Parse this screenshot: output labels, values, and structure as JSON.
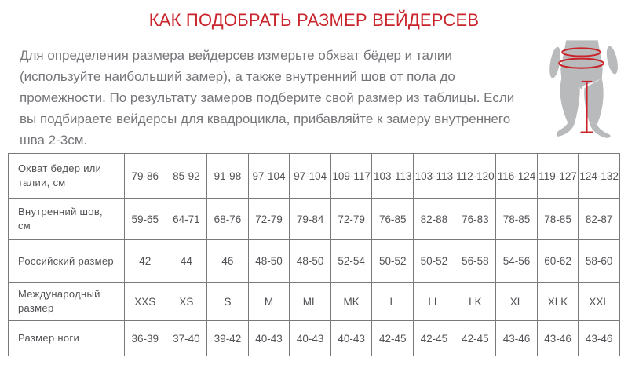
{
  "page": {
    "title": "КАК ПОДОБРАТЬ РАЗМЕР ВЕЙДЕРСЕВ",
    "intro": "Для определения размера вейдерсев измерьте обхват бёдер и талии (используйте наибольший замер), а также внутренний шов от пола до промежности. По результату замеров подберите свой размер из таблицы. Если вы подбираете вейдерсы для квадроцикла, прибавляйте к замеру внутреннего шва 2-3см."
  },
  "figure": {
    "icon": "legs-measurement-icon",
    "description_parts": [
      "waist-girth-ellipse",
      "hip-girth-ellipse",
      "inseam-line"
    ]
  },
  "colors": {
    "title_red": "#c9242b",
    "accent_red": "#c9242b",
    "body_text": "#75767a",
    "table_text": "#525256",
    "table_border": "#7a7a7c",
    "figure_gray": "#b9babc",
    "background": "#ffffff"
  },
  "table": {
    "rows": [
      {
        "label": "Охват бедер или талии, см",
        "values": [
          "79-86",
          "85-92",
          "91-98",
          "97-104",
          "97-104",
          "109-117",
          "103-113",
          "103-113",
          "112-120",
          "116-124",
          "119-127",
          "124-132"
        ]
      },
      {
        "label": "Внутренний шов, см",
        "values": [
          "59-65",
          "64-71",
          "68-76",
          "72-79",
          "79-84",
          "72-79",
          "76-85",
          "82-88",
          "76-83",
          "78-85",
          "78-85",
          "82-87"
        ]
      },
      {
        "label": "Российский размер",
        "values": [
          "42",
          "44",
          "46",
          "48-50",
          "48-50",
          "52-54",
          "50-52",
          "50-52",
          "56-58",
          "54-56",
          "60-62",
          "58-60"
        ]
      },
      {
        "label": "Международный размер",
        "values": [
          "XXS",
          "XS",
          "S",
          "M",
          "ML",
          "MK",
          "L",
          "LL",
          "LK",
          "XL",
          "XLK",
          "XXL"
        ]
      },
      {
        "label": "Размер ноги",
        "values": [
          "36-39",
          "37-40",
          "39-42",
          "40-43",
          "40-43",
          "40-43",
          "42-45",
          "42-45",
          "42-45",
          "43-46",
          "43-46",
          "43-46"
        ]
      }
    ]
  }
}
